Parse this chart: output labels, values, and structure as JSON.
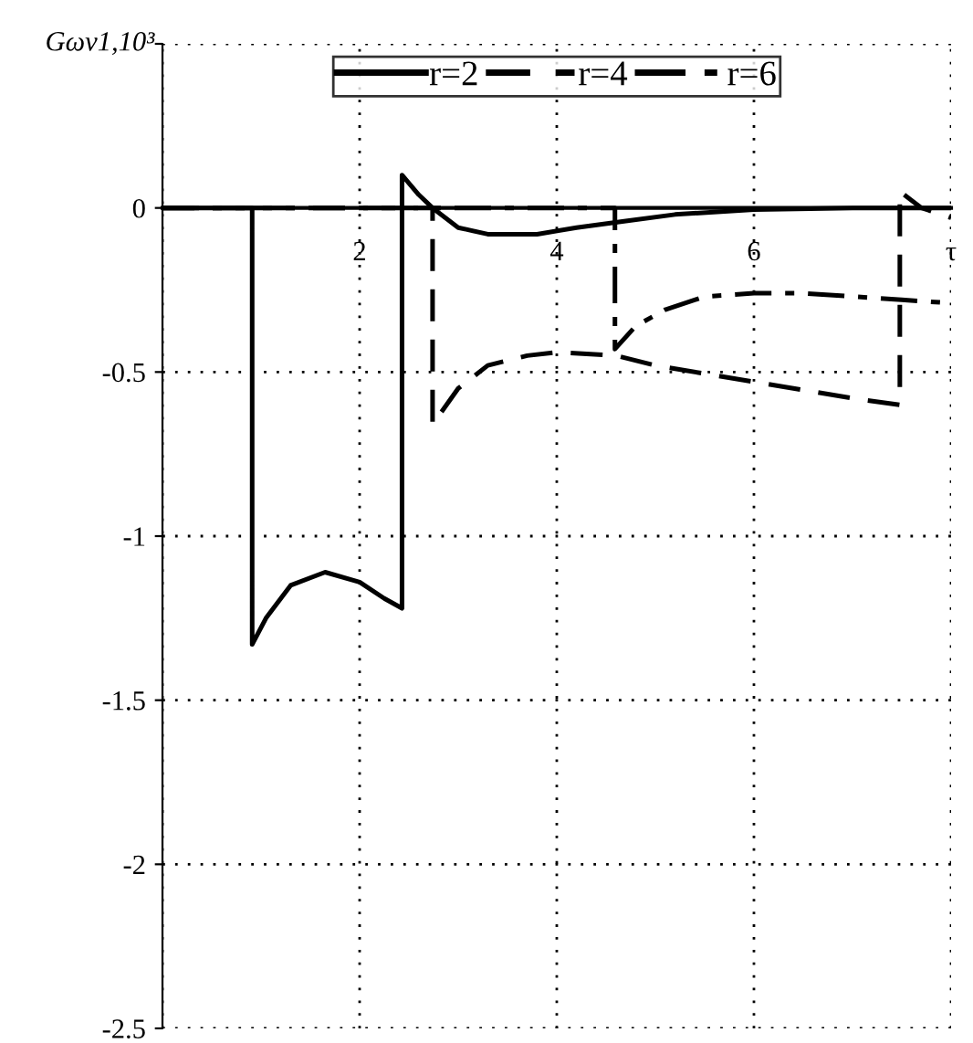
{
  "chart_data": {
    "type": "line",
    "ylabel": "Gωv1,10³",
    "xlim": [
      0,
      8
    ],
    "ylim": [
      -2.5,
      0.5
    ],
    "xticks": [
      {
        "value": 0,
        "label": null
      },
      2,
      4,
      6,
      {
        "value": 8,
        "label": "τ"
      }
    ],
    "yticks": [
      -2.5,
      -2,
      -1.5,
      -1,
      -0.5,
      0,
      {
        "value": 0.5,
        "label": null
      }
    ],
    "grid": true,
    "legend": "top",
    "marker": "none",
    "series": [
      {
        "name": "r=2",
        "color": "#000000",
        "line_style": "solid",
        "x": [
          0,
          0.91,
          0.91,
          1.05,
          1.3,
          1.65,
          2.0,
          2.25,
          2.43,
          2.43,
          2.6,
          2.74,
          3.0,
          3.3,
          3.8,
          4.2,
          4.7,
          5.2,
          6.0,
          7.0,
          8.0
        ],
        "values": [
          0,
          0,
          -1.33,
          -1.25,
          -1.15,
          -1.11,
          -1.14,
          -1.19,
          -1.22,
          0.1,
          0.04,
          0,
          -0.06,
          -0.08,
          -0.08,
          -0.06,
          -0.04,
          -0.02,
          -0.005,
          0,
          0
        ]
      },
      {
        "name": "r=4",
        "color": "#000000",
        "line_style": "dashed",
        "x": [
          0,
          2.74,
          2.74,
          3.0,
          3.3,
          3.7,
          4.0,
          4.6,
          5.0,
          6.0,
          7.0,
          7.48,
          7.48,
          7.7,
          8.0
        ],
        "values": [
          0,
          0,
          -0.66,
          -0.55,
          -0.48,
          -0.45,
          -0.44,
          -0.45,
          -0.48,
          -0.53,
          -0.58,
          -0.6,
          0.05,
          0,
          -0.03
        ]
      },
      {
        "name": "r=6",
        "color": "#000000",
        "line_style": "dashdot",
        "x": [
          0,
          4.59,
          4.59,
          4.8,
          5.1,
          5.5,
          6.0,
          6.5,
          7.0,
          7.5,
          8.0
        ],
        "values": [
          0,
          0,
          -0.43,
          -0.36,
          -0.31,
          -0.27,
          -0.26,
          -0.26,
          -0.27,
          -0.28,
          -0.29
        ]
      }
    ]
  }
}
